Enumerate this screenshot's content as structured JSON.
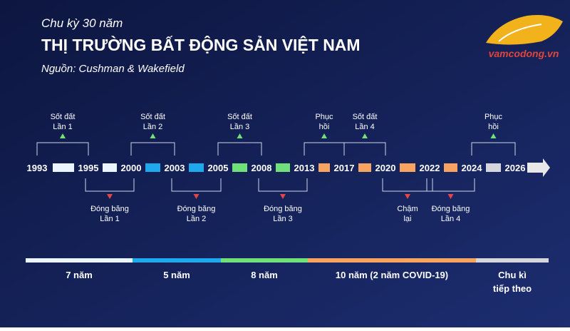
{
  "header": {
    "subtitle": "Chu kỳ 30 năm",
    "title": "THỊ TRƯỜNG BẤT ĐỘNG SẢN VIỆT NAM",
    "source": "Nguồn: Cushman & Wakefield"
  },
  "logo": {
    "text": "vamcodong.vn"
  },
  "timeline": {
    "years": [
      "1993",
      "1995",
      "2000",
      "2003",
      "2005",
      "2008",
      "2013",
      "2017",
      "2020",
      "2022",
      "2024",
      "2026"
    ],
    "events_above": [
      {
        "lines": [
          "Sốt đất",
          "Lần 1"
        ]
      },
      {
        "lines": [
          "Sốt đất",
          "Lần 2"
        ]
      },
      {
        "lines": [
          "Sốt đất",
          "Lần 3"
        ]
      },
      {
        "lines": [
          "Phục",
          "hồi"
        ]
      },
      {
        "lines": [
          "Sốt đất",
          "Lần 4"
        ]
      },
      {
        "lines": [
          "Phục",
          "hồi"
        ]
      }
    ],
    "events_below": [
      {
        "lines": [
          "Đóng băng",
          "Lần 1"
        ]
      },
      {
        "lines": [
          "Đóng băng",
          "Lần 2"
        ]
      },
      {
        "lines": [
          "Đóng băng",
          "Lần 3"
        ]
      },
      {
        "lines": [
          "Chậm",
          "lại"
        ]
      },
      {
        "lines": [
          "Đóng băng",
          "Lần 4"
        ]
      }
    ]
  },
  "phases": [
    {
      "lines": [
        "7 năm"
      ]
    },
    {
      "lines": [
        "5 năm"
      ]
    },
    {
      "lines": [
        "8 năm"
      ]
    },
    {
      "lines": [
        "10 năm (2 năm COVID-19)"
      ]
    },
    {
      "lines": [
        "Chu kì",
        "tiếp theo"
      ]
    }
  ]
}
